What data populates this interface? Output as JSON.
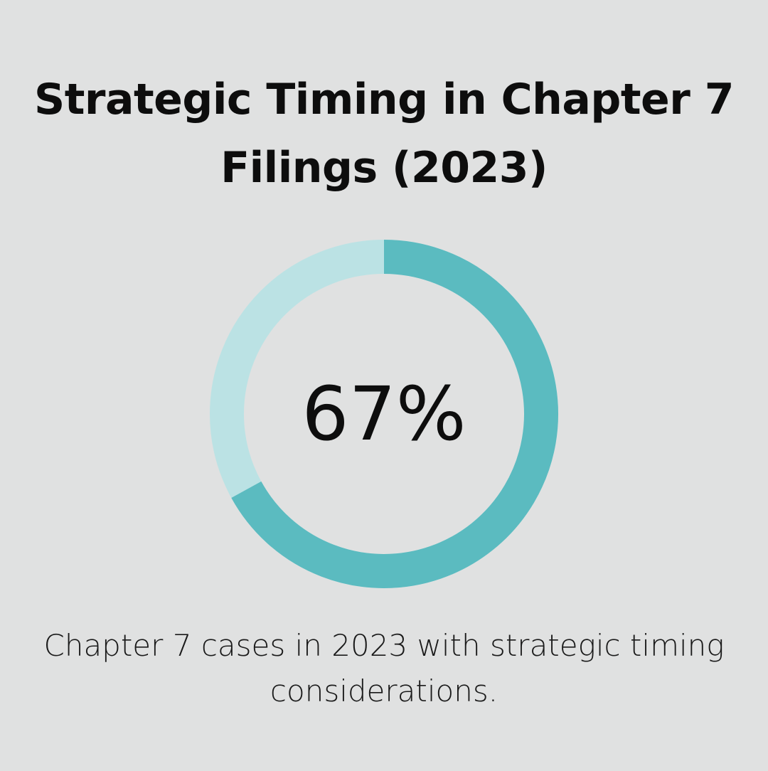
{
  "chart_data": {
    "type": "pie",
    "style": "donut",
    "title": "Strategic Timing in Chapter 7 Filings (2023)",
    "center_label": "67%",
    "value": 67,
    "unit": "%",
    "caption": "Chapter 7 cases in 2023 with strategic timing considerations.",
    "colors": {
      "value_arc": "#5bbbc0",
      "remainder_arc": "#bbe2e4",
      "background": "#e0e1e1"
    }
  }
}
